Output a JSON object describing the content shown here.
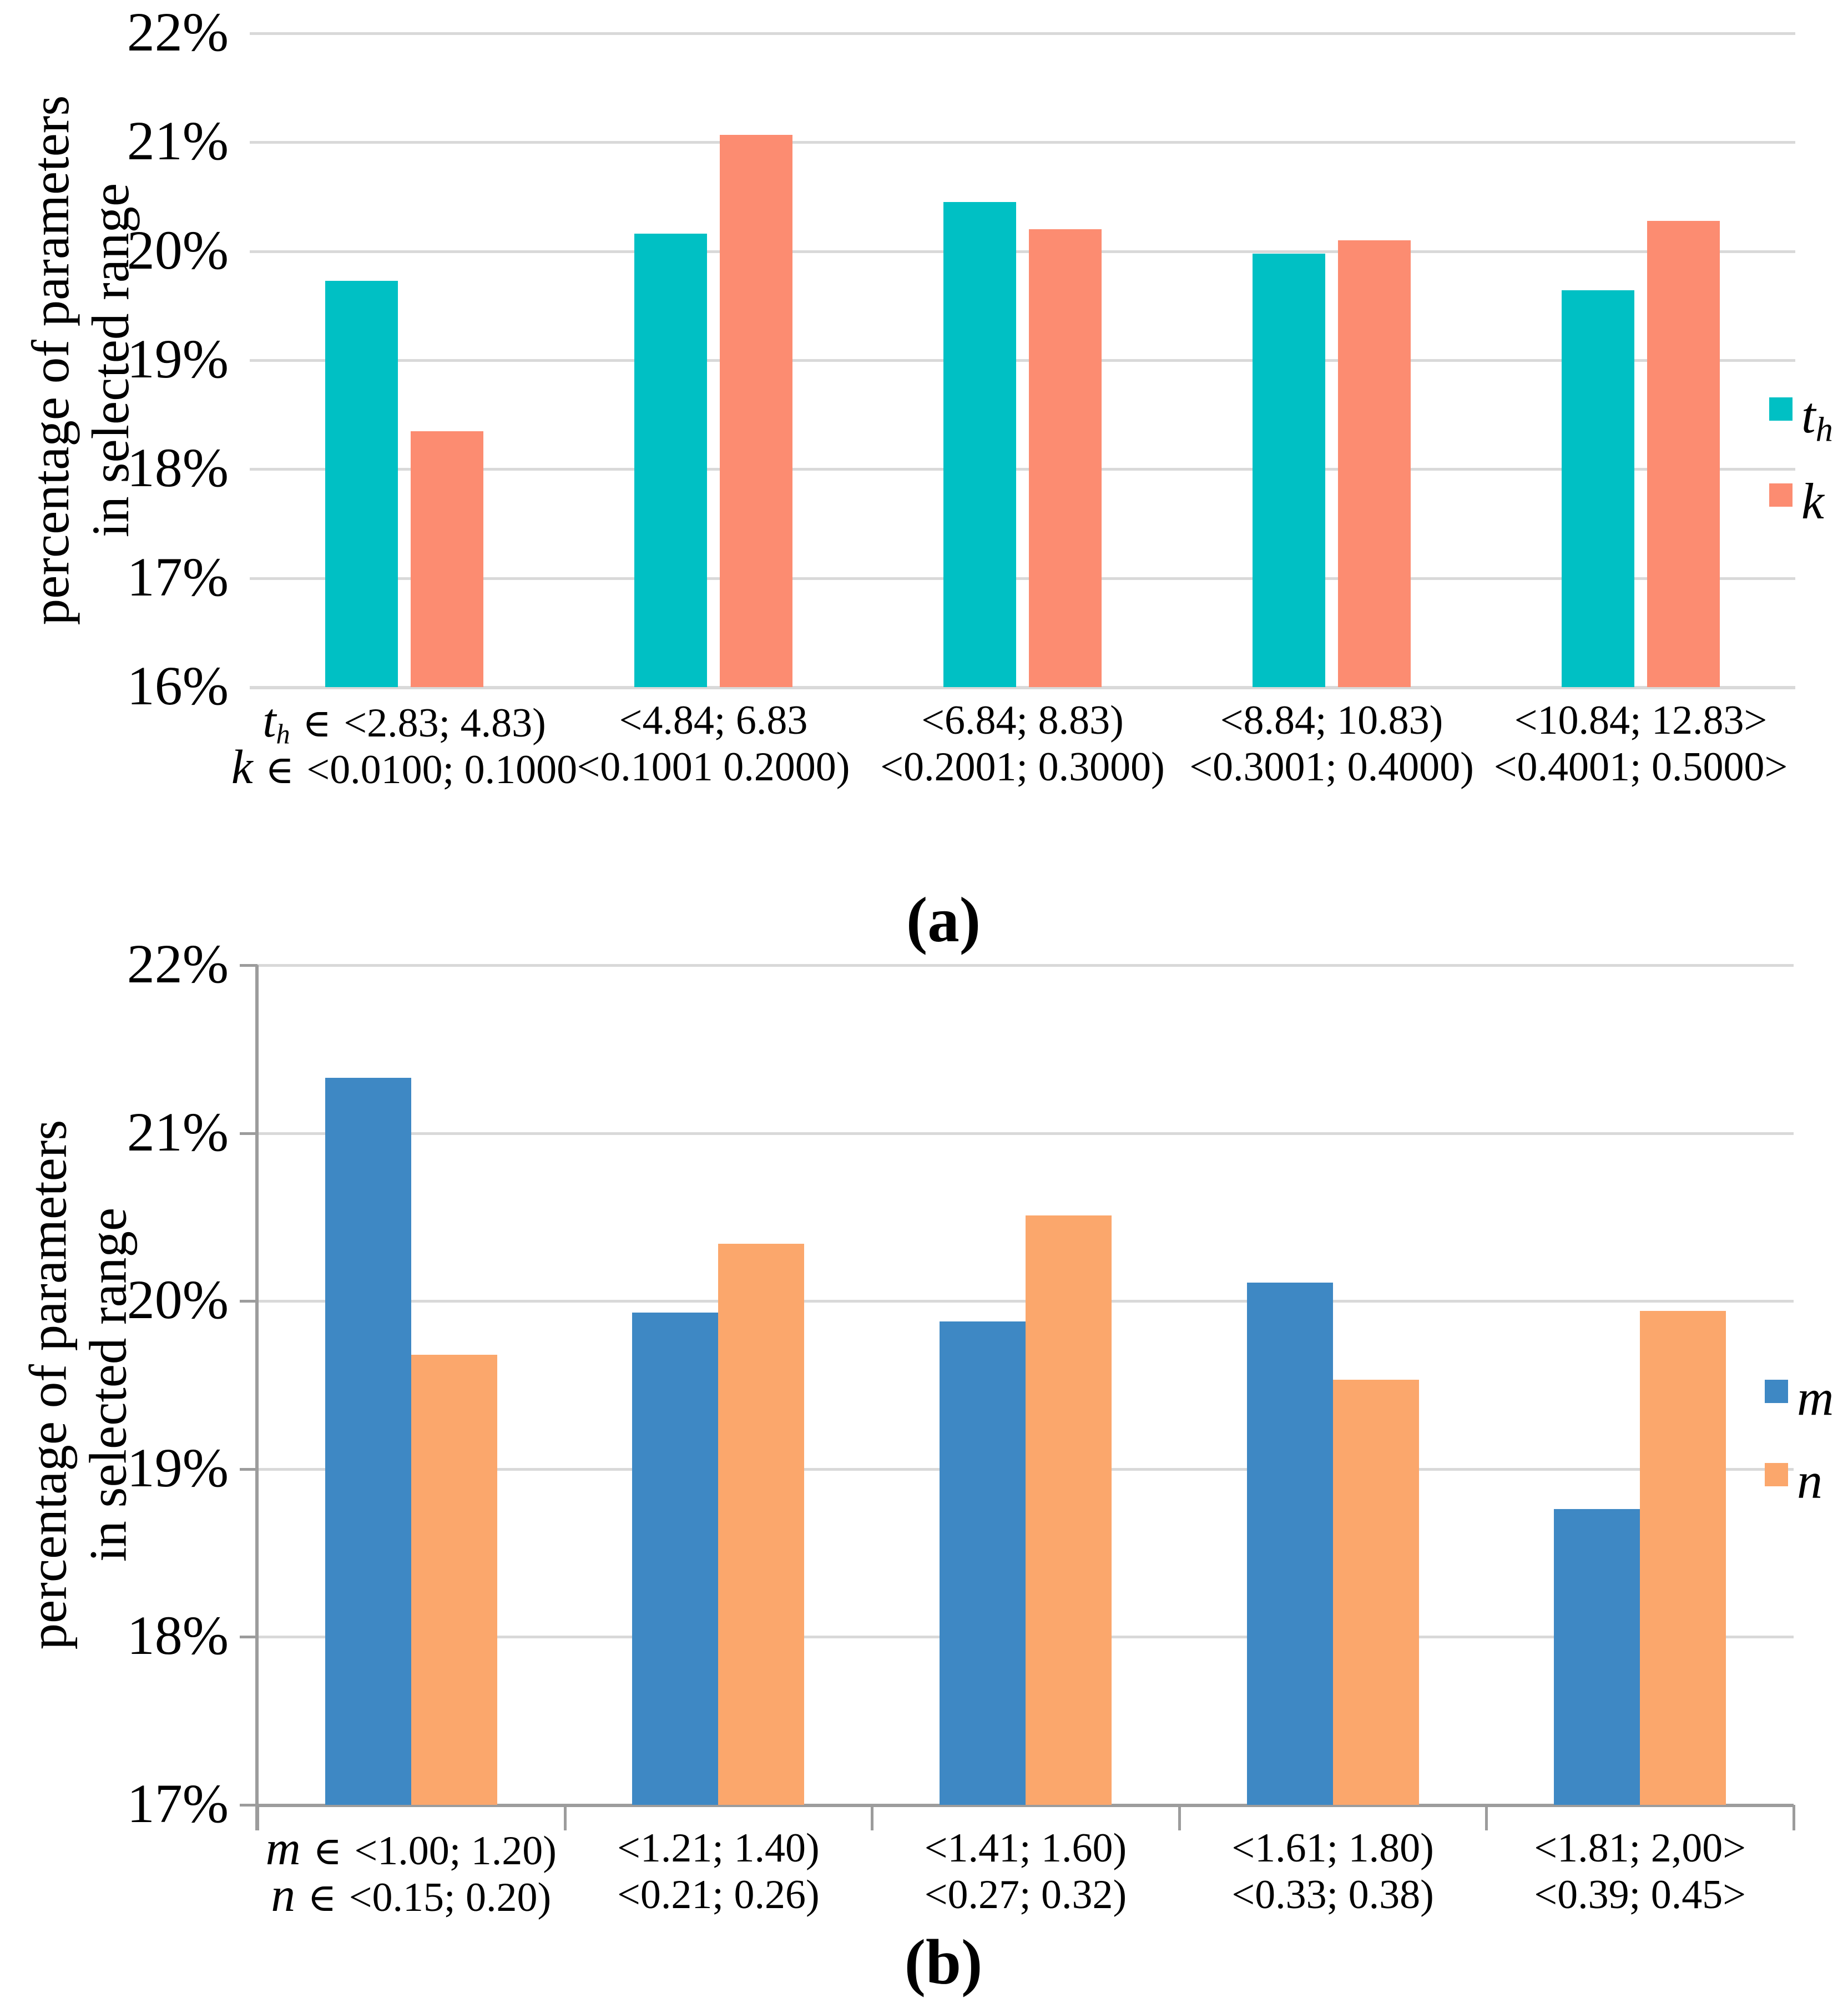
{
  "figure": {
    "captions": {
      "a": "(a)",
      "b": "(b)"
    }
  },
  "chart_data": [
    {
      "type": "bar",
      "panel": "a",
      "ylabel": "percentage of parameters in selected range",
      "ylabel_lines": [
        "percentage of parameters",
        "in selected range"
      ],
      "ylim": [
        16,
        22
      ],
      "ytick_labels": [
        "22%",
        "21%",
        "20%",
        "19%",
        "18%",
        "17%",
        "16%"
      ],
      "grid": true,
      "legend_position": "right",
      "category_prefix_top": {
        "var": "t",
        "sub": "h",
        "symbol": "∈"
      },
      "category_prefix_bottom": {
        "var": "k",
        "symbol": "∈"
      },
      "categories_top": [
        "<2.83; 4.83)",
        "<4.84; 6.83",
        "<6.84; 8.83)",
        "<8.84; 10.83)",
        "<10.84; 12.83>"
      ],
      "categories_bottom": [
        "<0.0100; 0.1000",
        "<0.1001 0.2000)",
        "<0.2001; 0.3000)",
        "<0.3001; 0.4000)",
        "<0.4001; 0.5000>"
      ],
      "series": [
        {
          "name": "t_h",
          "legend_var": "t",
          "legend_sub": "h",
          "color": "#00C0C4",
          "values": [
            19.73,
            20.16,
            20.45,
            19.98,
            19.64
          ]
        },
        {
          "name": "k",
          "legend_var": "k",
          "legend_sub": "",
          "color": "#FC8C71",
          "values": [
            18.35,
            21.07,
            20.2,
            20.1,
            20.28
          ]
        }
      ]
    },
    {
      "type": "bar",
      "panel": "b",
      "ylabel": "percentage of parameters in selected range",
      "ylabel_lines": [
        "percentage of parameters",
        "in selected range"
      ],
      "ylim": [
        17,
        22
      ],
      "ytick_labels": [
        "22%",
        "21%",
        "20%",
        "19%",
        "18%",
        "17%"
      ],
      "grid": true,
      "legend_position": "right",
      "category_prefix_top": {
        "var": "m",
        "sub": "",
        "symbol": "∈"
      },
      "category_prefix_bottom": {
        "var": "n",
        "symbol": "∈"
      },
      "categories_top": [
        "<1.00; 1.20)",
        "<1.21; 1.40)",
        "<1.41; 1.60)",
        "<1.61; 1.80)",
        "<1.81; 2,00>"
      ],
      "categories_bottom": [
        "<0.15; 0.20)",
        "<0.21; 0.26)",
        "<0.27; 0.32)",
        "<0.33; 0.38)",
        "<0.39; 0.45>"
      ],
      "series": [
        {
          "name": "m",
          "legend_var": "m",
          "legend_sub": "",
          "color": "#3E88C4",
          "values": [
            21.33,
            19.93,
            19.88,
            20.11,
            18.76
          ]
        },
        {
          "name": "n",
          "legend_var": "n",
          "legend_sub": "",
          "color": "#FBA76C",
          "values": [
            19.68,
            20.34,
            20.51,
            19.53,
            19.94
          ]
        }
      ]
    }
  ]
}
